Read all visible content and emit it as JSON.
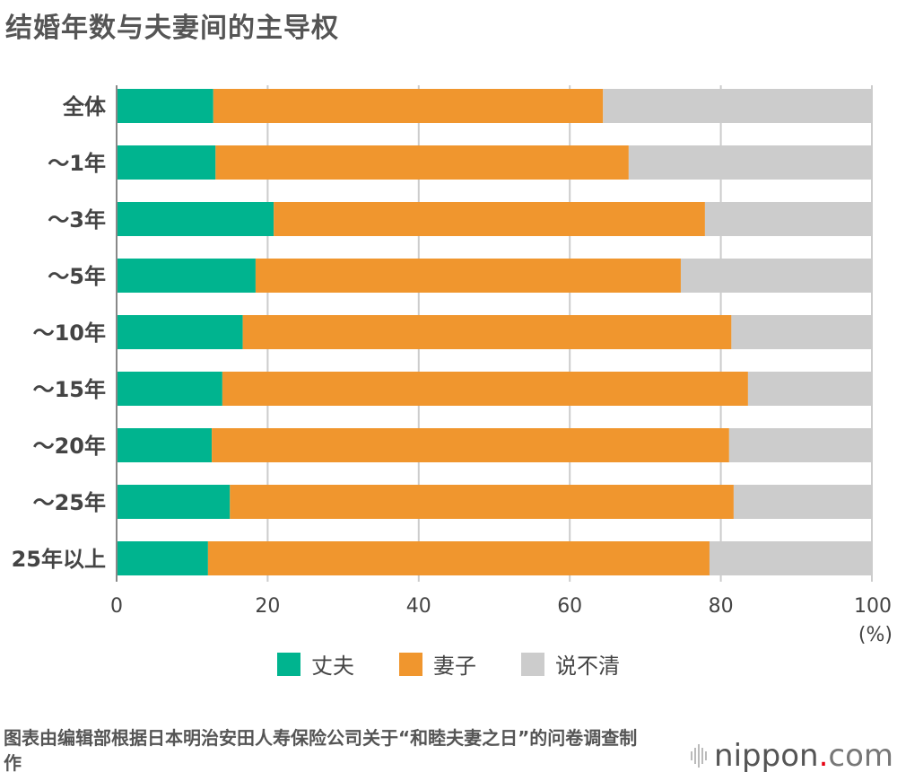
{
  "title": "结婚年数与夫妻间的主导权",
  "source": "图表由编辑部根据日本明治安田人寿保险公司关于“和睦夫妻之日”的问卷调查制作",
  "logo": {
    "name": "nippon",
    "dot": ".",
    "tld": "com"
  },
  "chart_data": {
    "type": "bar",
    "orientation": "horizontal",
    "stacked": true,
    "title": "结婚年数与夫妻间的主导权",
    "categories": [
      "全体",
      "～1年",
      "～3年",
      "～5年",
      "～10年",
      "～15年",
      "～20年",
      "～25年",
      "25年以上"
    ],
    "series": [
      {
        "name": "丈夫",
        "color": "#00b48f",
        "values": [
          12.8,
          13.1,
          20.8,
          18.4,
          16.7,
          14.0,
          12.6,
          15.0,
          12.1
        ]
      },
      {
        "name": "妻子",
        "color": "#f0962e",
        "values": [
          51.6,
          54.7,
          57.1,
          56.3,
          64.7,
          69.6,
          68.5,
          66.7,
          66.4
        ]
      },
      {
        "name": "说不清",
        "color": "#cccccc",
        "values": [
          35.6,
          32.2,
          22.1,
          25.3,
          18.6,
          16.4,
          18.9,
          18.3,
          21.5
        ]
      }
    ],
    "xlim": [
      0,
      100
    ],
    "xticks": [
      0,
      20,
      40,
      60,
      80,
      100
    ],
    "xunit": "(%)",
    "grid": true,
    "legend_position": "bottom"
  }
}
